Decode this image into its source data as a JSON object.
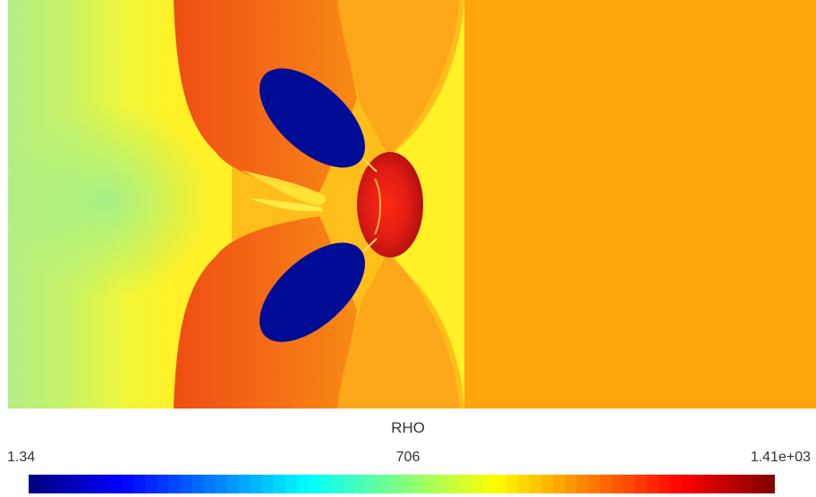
{
  "chart_data": {
    "type": "heatmap",
    "colorbar": {
      "title": "RHO",
      "min_label": "1.34",
      "mid_label": "706",
      "max_label": "1.41e+03",
      "min": 1.34,
      "max": 1410,
      "colormap": "jet",
      "orientation": "horizontal",
      "placement": "bottom"
    },
    "field_colors": {
      "ambient": "#ffa50c",
      "left_region": "#c6f26a",
      "shock_band": "#f25a14",
      "droplet_lobes": "#000c96",
      "droplet_core": "#d41a14"
    }
  }
}
